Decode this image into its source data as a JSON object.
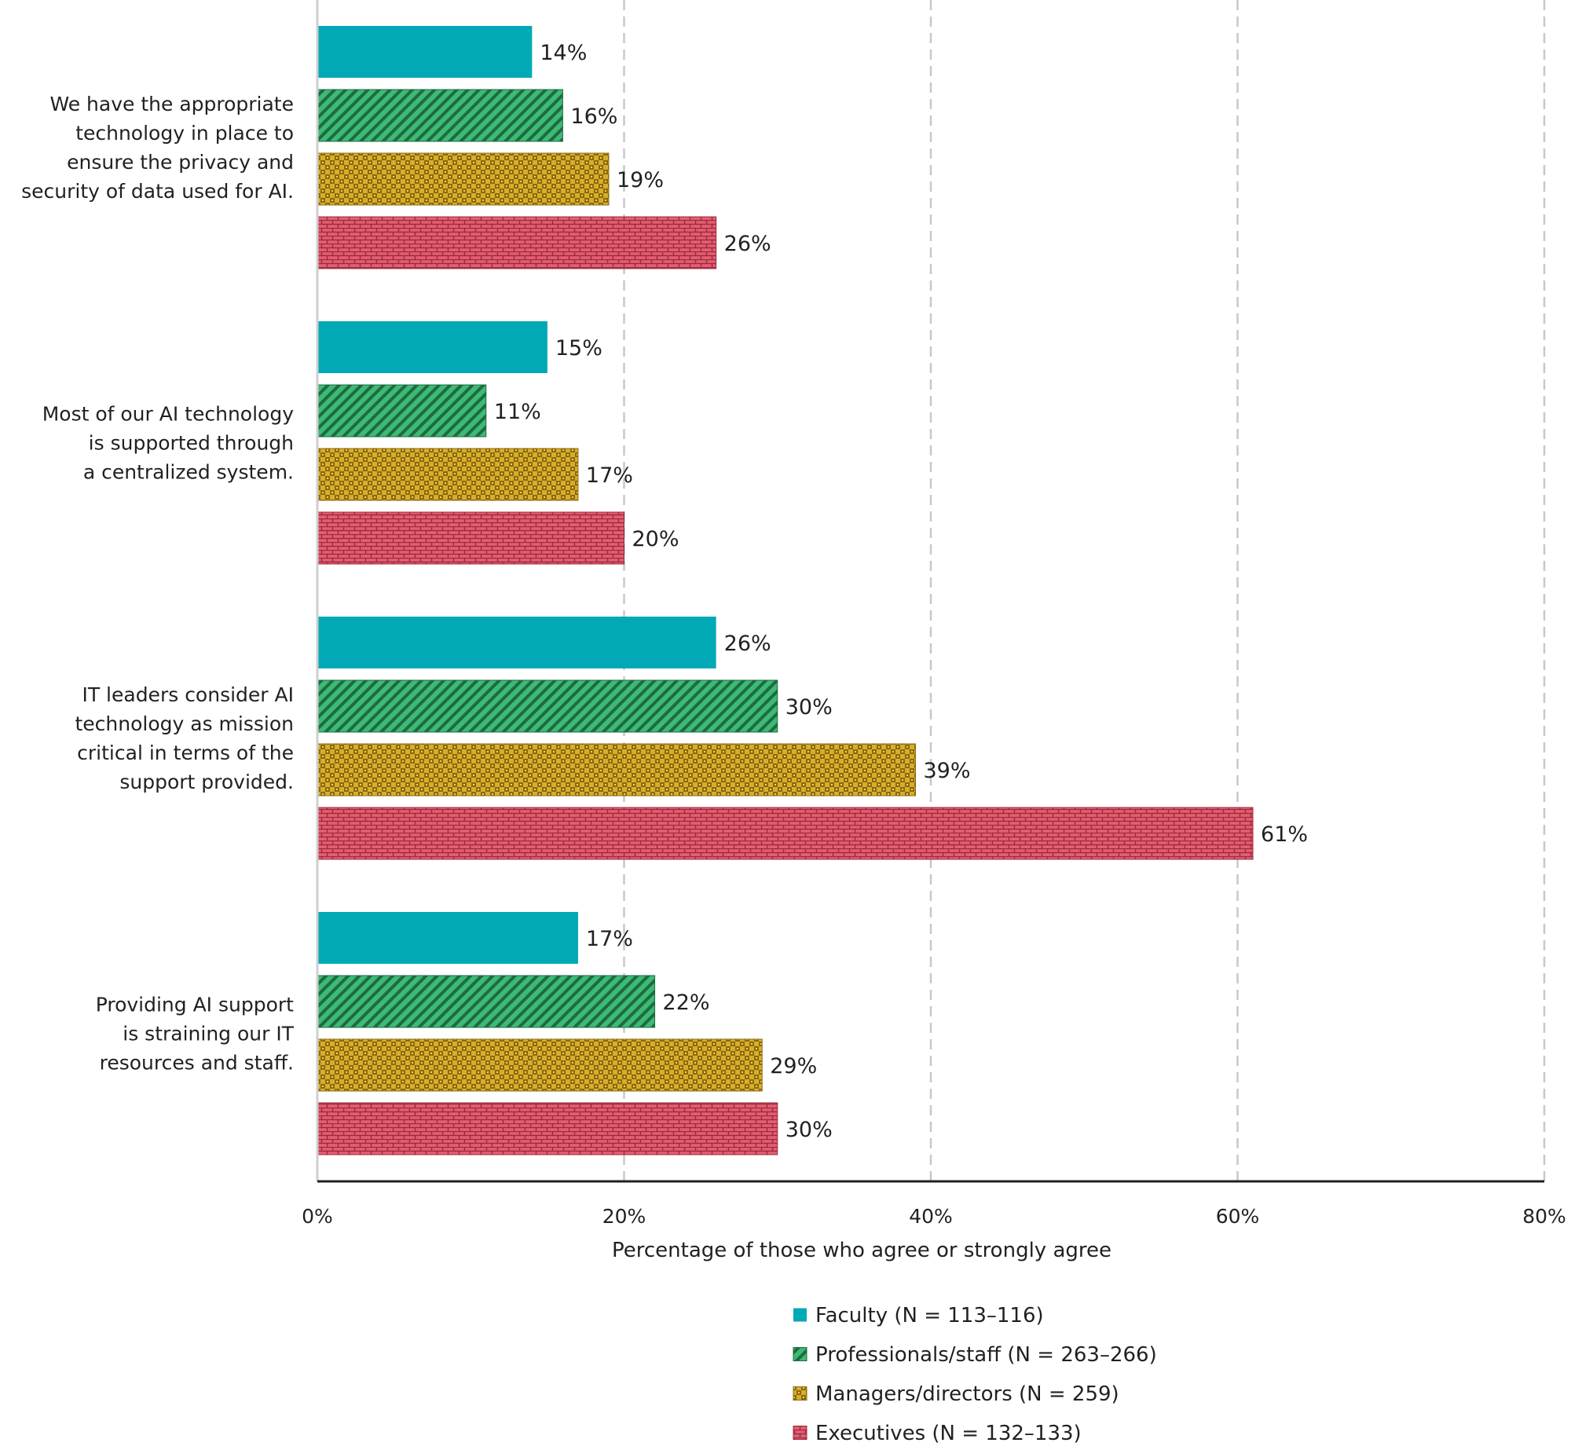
{
  "chart_data": {
    "type": "bar",
    "orientation": "horizontal",
    "title": "",
    "categories": [
      [
        "We have the appropriate",
        "technology in place to",
        "ensure the privacy and",
        "security of data used for AI."
      ],
      [
        "Most of our AI technology",
        "is supported through",
        "a centralized system."
      ],
      [
        "IT leaders consider AI",
        "technology as mission",
        "critical in terms of the",
        "support provided."
      ],
      [
        "Providing AI support",
        "is straining our IT",
        "resources and staff."
      ]
    ],
    "series": [
      {
        "name": "Faculty (N = 113–116)",
        "color": "#00a9b5",
        "pattern": "solid",
        "values": [
          14,
          15,
          26,
          17
        ]
      },
      {
        "name": "Professionals/staff (N = 263–266)",
        "color": "#3dba74",
        "pattern": "diagonal-stripes",
        "values": [
          16,
          11,
          30,
          22
        ]
      },
      {
        "name": "Managers/directors (N = 259)",
        "color": "#d4a823",
        "pattern": "checker",
        "values": [
          19,
          17,
          39,
          29
        ]
      },
      {
        "name": "Executives (N = 132–133)",
        "color": "#e1566b",
        "pattern": "brick",
        "values": [
          26,
          20,
          61,
          30
        ]
      }
    ],
    "value_suffix": "%",
    "xlabel": "Percentage of those who agree or strongly agree",
    "ylabel": "",
    "xlim": [
      0,
      80
    ],
    "xticks": [
      0,
      20,
      40,
      60,
      80
    ],
    "xtick_labels": [
      "0%",
      "20%",
      "40%",
      "60%",
      "80%"
    ],
    "grid": "vertical dashed",
    "legend_position": "bottom-center"
  }
}
